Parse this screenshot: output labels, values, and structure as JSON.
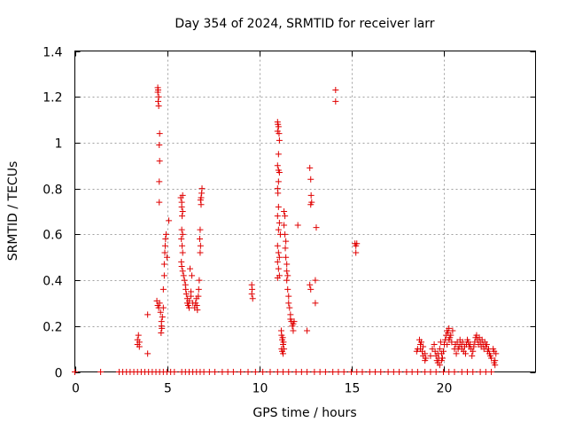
{
  "chart_data": {
    "type": "scatter",
    "title": "Day 354 of 2024, SRMTID for receiver larr",
    "xlabel": "GPS time / hours",
    "ylabel": "SRMTID / TECUs",
    "xlim": [
      0,
      25
    ],
    "ylim": [
      0,
      1.4
    ],
    "grid": true,
    "x_ticks": [
      0,
      5,
      10,
      15,
      20
    ],
    "x_tick_labels": [
      "0",
      "5",
      "10",
      "15",
      "20"
    ],
    "y_ticks": [
      0,
      0.2,
      0.4,
      0.6,
      0.8,
      1,
      1.2,
      1.4
    ],
    "y_tick_labels": [
      "0",
      "0.2",
      "0.4",
      "0.6",
      "0.8",
      "1",
      "1.2",
      "1.4"
    ],
    "marker": "+",
    "marker_color": "#e00000",
    "series": [
      {
        "name": "SRMTID",
        "points": [
          [
            0.0,
            0.0
          ],
          [
            1.4,
            0.0
          ],
          [
            2.4,
            0.0
          ],
          [
            2.6,
            0.0
          ],
          [
            2.8,
            0.0
          ],
          [
            3.0,
            0.0
          ],
          [
            3.2,
            0.0
          ],
          [
            3.4,
            0.0
          ],
          [
            3.6,
            0.0
          ],
          [
            3.8,
            0.0
          ],
          [
            4.0,
            0.0
          ],
          [
            4.2,
            0.0
          ],
          [
            4.4,
            0.0
          ],
          [
            4.6,
            0.0
          ],
          [
            4.8,
            0.0
          ],
          [
            5.0,
            0.0
          ],
          [
            5.2,
            0.0
          ],
          [
            5.4,
            0.0
          ],
          [
            5.8,
            0.0
          ],
          [
            6.0,
            0.0
          ],
          [
            6.2,
            0.0
          ],
          [
            6.4,
            0.0
          ],
          [
            6.6,
            0.0
          ],
          [
            6.8,
            0.0
          ],
          [
            7.0,
            0.0
          ],
          [
            7.3,
            0.0
          ],
          [
            7.6,
            0.0
          ],
          [
            8.0,
            0.0
          ],
          [
            8.3,
            0.0
          ],
          [
            8.6,
            0.0
          ],
          [
            9.0,
            0.0
          ],
          [
            9.4,
            0.0
          ],
          [
            9.8,
            0.0
          ],
          [
            10.2,
            0.0
          ],
          [
            10.6,
            0.0
          ],
          [
            11.0,
            0.0
          ],
          [
            11.3,
            0.0
          ],
          [
            11.6,
            0.0
          ],
          [
            12.0,
            0.0
          ],
          [
            12.3,
            0.0
          ],
          [
            12.6,
            0.0
          ],
          [
            13.0,
            0.0
          ],
          [
            13.3,
            0.0
          ],
          [
            13.6,
            0.0
          ],
          [
            14.0,
            0.0
          ],
          [
            14.3,
            0.0
          ],
          [
            14.6,
            0.0
          ],
          [
            15.0,
            0.0
          ],
          [
            15.3,
            0.0
          ],
          [
            15.6,
            0.0
          ],
          [
            16.0,
            0.0
          ],
          [
            16.3,
            0.0
          ],
          [
            16.6,
            0.0
          ],
          [
            17.0,
            0.0
          ],
          [
            17.3,
            0.0
          ],
          [
            17.6,
            0.0
          ],
          [
            18.0,
            0.0
          ],
          [
            18.3,
            0.0
          ],
          [
            18.6,
            0.0
          ],
          [
            19.0,
            0.0
          ],
          [
            19.3,
            0.0
          ],
          [
            19.6,
            0.0
          ],
          [
            20.0,
            0.0
          ],
          [
            20.3,
            0.0
          ],
          [
            20.6,
            0.0
          ],
          [
            21.0,
            0.0
          ],
          [
            21.3,
            0.0
          ],
          [
            21.6,
            0.0
          ],
          [
            22.0,
            0.0
          ],
          [
            22.3,
            0.0
          ],
          [
            22.6,
            0.0
          ],
          [
            3.4,
            0.12
          ],
          [
            3.4,
            0.14
          ],
          [
            3.45,
            0.16
          ],
          [
            3.5,
            0.11
          ],
          [
            3.5,
            0.13
          ],
          [
            3.95,
            0.25
          ],
          [
            3.95,
            0.08
          ],
          [
            4.5,
            1.24
          ],
          [
            4.52,
            1.23
          ],
          [
            4.5,
            1.22
          ],
          [
            4.55,
            1.2
          ],
          [
            4.52,
            1.18
          ],
          [
            4.55,
            1.16
          ],
          [
            4.6,
            1.04
          ],
          [
            4.58,
            0.99
          ],
          [
            4.6,
            0.92
          ],
          [
            4.58,
            0.83
          ],
          [
            4.58,
            0.74
          ],
          [
            4.45,
            0.31
          ],
          [
            4.5,
            0.29
          ],
          [
            4.55,
            0.28
          ],
          [
            4.6,
            0.3
          ],
          [
            4.65,
            0.26
          ],
          [
            4.7,
            0.22
          ],
          [
            4.72,
            0.19
          ],
          [
            4.68,
            0.17
          ],
          [
            4.7,
            0.2
          ],
          [
            4.75,
            0.24
          ],
          [
            4.8,
            0.36
          ],
          [
            4.8,
            0.28
          ],
          [
            4.85,
            0.42
          ],
          [
            4.85,
            0.47
          ],
          [
            4.88,
            0.52
          ],
          [
            4.9,
            0.55
          ],
          [
            4.92,
            0.58
          ],
          [
            4.95,
            0.6
          ],
          [
            5.0,
            0.5
          ],
          [
            5.1,
            0.66
          ],
          [
            5.75,
            0.76
          ],
          [
            5.8,
            0.74
          ],
          [
            5.85,
            0.77
          ],
          [
            5.8,
            0.72
          ],
          [
            5.85,
            0.7
          ],
          [
            5.82,
            0.68
          ],
          [
            5.8,
            0.62
          ],
          [
            5.85,
            0.6
          ],
          [
            5.78,
            0.58
          ],
          [
            5.82,
            0.55
          ],
          [
            5.85,
            0.52
          ],
          [
            5.78,
            0.48
          ],
          [
            5.8,
            0.46
          ],
          [
            5.85,
            0.44
          ],
          [
            5.9,
            0.42
          ],
          [
            5.95,
            0.4
          ],
          [
            6.0,
            0.38
          ],
          [
            6.02,
            0.36
          ],
          [
            6.05,
            0.34
          ],
          [
            6.1,
            0.32
          ],
          [
            6.1,
            0.3
          ],
          [
            6.15,
            0.29
          ],
          [
            6.2,
            0.28
          ],
          [
            6.2,
            0.31
          ],
          [
            6.3,
            0.33
          ],
          [
            6.3,
            0.35
          ],
          [
            6.25,
            0.45
          ],
          [
            6.35,
            0.42
          ],
          [
            6.4,
            0.3
          ],
          [
            6.5,
            0.28
          ],
          [
            6.55,
            0.3
          ],
          [
            6.6,
            0.32
          ],
          [
            6.62,
            0.29
          ],
          [
            6.65,
            0.27
          ],
          [
            6.7,
            0.33
          ],
          [
            6.72,
            0.36
          ],
          [
            6.75,
            0.4
          ],
          [
            6.8,
            0.52
          ],
          [
            6.82,
            0.55
          ],
          [
            6.78,
            0.58
          ],
          [
            6.8,
            0.62
          ],
          [
            6.85,
            0.73
          ],
          [
            6.85,
            0.76
          ],
          [
            6.88,
            0.78
          ],
          [
            6.9,
            0.8
          ],
          [
            6.82,
            0.75
          ],
          [
            9.6,
            0.38
          ],
          [
            9.62,
            0.36
          ],
          [
            9.6,
            0.34
          ],
          [
            9.65,
            0.32
          ],
          [
            11.0,
            1.09
          ],
          [
            11.02,
            1.08
          ],
          [
            11.05,
            1.07
          ],
          [
            11.0,
            1.05
          ],
          [
            11.08,
            1.04
          ],
          [
            11.1,
            1.01
          ],
          [
            11.05,
            0.95
          ],
          [
            11.0,
            0.9
          ],
          [
            11.05,
            0.88
          ],
          [
            11.1,
            0.87
          ],
          [
            11.05,
            0.83
          ],
          [
            11.0,
            0.8
          ],
          [
            11.02,
            0.78
          ],
          [
            11.05,
            0.72
          ],
          [
            11.0,
            0.68
          ],
          [
            11.1,
            0.65
          ],
          [
            11.05,
            0.62
          ],
          [
            11.15,
            0.6
          ],
          [
            11.0,
            0.55
          ],
          [
            11.05,
            0.52
          ],
          [
            11.1,
            0.5
          ],
          [
            11.0,
            0.48
          ],
          [
            11.05,
            0.45
          ],
          [
            11.1,
            0.42
          ],
          [
            11.0,
            0.41
          ],
          [
            11.2,
            0.18
          ],
          [
            11.22,
            0.16
          ],
          [
            11.25,
            0.14
          ],
          [
            11.3,
            0.12
          ],
          [
            11.22,
            0.1
          ],
          [
            11.25,
            0.09
          ],
          [
            11.3,
            0.08
          ],
          [
            11.35,
            0.1
          ],
          [
            11.32,
            0.13
          ],
          [
            11.28,
            0.15
          ],
          [
            11.35,
            0.7
          ],
          [
            11.4,
            0.68
          ],
          [
            11.35,
            0.64
          ],
          [
            11.4,
            0.6
          ],
          [
            11.45,
            0.57
          ],
          [
            11.42,
            0.54
          ],
          [
            11.45,
            0.5
          ],
          [
            11.5,
            0.47
          ],
          [
            11.5,
            0.44
          ],
          [
            11.55,
            0.42
          ],
          [
            11.5,
            0.4
          ],
          [
            11.55,
            0.36
          ],
          [
            11.6,
            0.33
          ],
          [
            11.6,
            0.3
          ],
          [
            11.65,
            0.28
          ],
          [
            11.7,
            0.25
          ],
          [
            11.7,
            0.23
          ],
          [
            11.75,
            0.22
          ],
          [
            11.8,
            0.2
          ],
          [
            11.85,
            0.21
          ],
          [
            11.9,
            0.22
          ],
          [
            11.85,
            0.18
          ],
          [
            12.1,
            0.64
          ],
          [
            12.6,
            0.18
          ],
          [
            12.75,
            0.89
          ],
          [
            12.8,
            0.84
          ],
          [
            12.82,
            0.77
          ],
          [
            12.85,
            0.74
          ],
          [
            12.8,
            0.73
          ],
          [
            12.75,
            0.38
          ],
          [
            12.8,
            0.36
          ],
          [
            13.05,
            0.4
          ],
          [
            13.05,
            0.3
          ],
          [
            13.1,
            0.63
          ],
          [
            14.15,
            1.23
          ],
          [
            14.15,
            1.18
          ],
          [
            15.2,
            0.56
          ],
          [
            15.25,
            0.55
          ],
          [
            15.3,
            0.56
          ],
          [
            15.25,
            0.52
          ],
          [
            18.7,
            0.14
          ],
          [
            18.75,
            0.12
          ],
          [
            18.8,
            0.13
          ],
          [
            18.75,
            0.1
          ],
          [
            18.85,
            0.09
          ],
          [
            18.9,
            0.07
          ],
          [
            18.9,
            0.11
          ],
          [
            19.0,
            0.08
          ],
          [
            19.05,
            0.06
          ],
          [
            19.0,
            0.05
          ],
          [
            18.6,
            0.1
          ],
          [
            18.55,
            0.09
          ],
          [
            19.3,
            0.07
          ],
          [
            19.4,
            0.1
          ],
          [
            19.5,
            0.12
          ],
          [
            19.55,
            0.09
          ],
          [
            19.6,
            0.07
          ],
          [
            19.65,
            0.05
          ],
          [
            19.7,
            0.08
          ],
          [
            19.75,
            0.06
          ],
          [
            19.8,
            0.1
          ],
          [
            19.85,
            0.13
          ],
          [
            19.9,
            0.08
          ],
          [
            19.95,
            0.06
          ],
          [
            20.0,
            0.09
          ],
          [
            20.05,
            0.12
          ],
          [
            19.7,
            0.04
          ],
          [
            19.8,
            0.03
          ],
          [
            19.9,
            0.05
          ],
          [
            20.1,
            0.14
          ],
          [
            20.15,
            0.16
          ],
          [
            20.2,
            0.18
          ],
          [
            20.25,
            0.17
          ],
          [
            20.3,
            0.19
          ],
          [
            20.35,
            0.15
          ],
          [
            20.4,
            0.16
          ],
          [
            20.45,
            0.13
          ],
          [
            20.5,
            0.18
          ],
          [
            20.3,
            0.14
          ],
          [
            20.2,
            0.12
          ],
          [
            20.6,
            0.1
          ],
          [
            20.65,
            0.12
          ],
          [
            20.7,
            0.08
          ],
          [
            20.75,
            0.13
          ],
          [
            20.8,
            0.1
          ],
          [
            20.85,
            0.11
          ],
          [
            20.9,
            0.14
          ],
          [
            20.95,
            0.12
          ],
          [
            21.0,
            0.1
          ],
          [
            21.05,
            0.13
          ],
          [
            21.1,
            0.09
          ],
          [
            21.15,
            0.11
          ],
          [
            21.2,
            0.08
          ],
          [
            21.25,
            0.12
          ],
          [
            21.3,
            0.14
          ],
          [
            21.35,
            0.13
          ],
          [
            21.4,
            0.11
          ],
          [
            21.45,
            0.12
          ],
          [
            21.5,
            0.1
          ],
          [
            21.55,
            0.07
          ],
          [
            21.6,
            0.09
          ],
          [
            21.65,
            0.11
          ],
          [
            21.7,
            0.13
          ],
          [
            21.75,
            0.15
          ],
          [
            21.8,
            0.16
          ],
          [
            21.85,
            0.14
          ],
          [
            21.9,
            0.12
          ],
          [
            21.95,
            0.15
          ],
          [
            22.0,
            0.13
          ],
          [
            22.05,
            0.11
          ],
          [
            22.1,
            0.14
          ],
          [
            22.15,
            0.12
          ],
          [
            22.2,
            0.1
          ],
          [
            22.25,
            0.13
          ],
          [
            22.3,
            0.11
          ],
          [
            22.35,
            0.12
          ],
          [
            22.4,
            0.09
          ],
          [
            22.45,
            0.1
          ],
          [
            22.5,
            0.08
          ],
          [
            22.55,
            0.07
          ],
          [
            22.6,
            0.06
          ],
          [
            22.7,
            0.1
          ],
          [
            22.75,
            0.09
          ],
          [
            22.8,
            0.05
          ],
          [
            22.75,
            0.04
          ],
          [
            22.8,
            0.03
          ],
          [
            22.85,
            0.08
          ]
        ]
      }
    ]
  }
}
